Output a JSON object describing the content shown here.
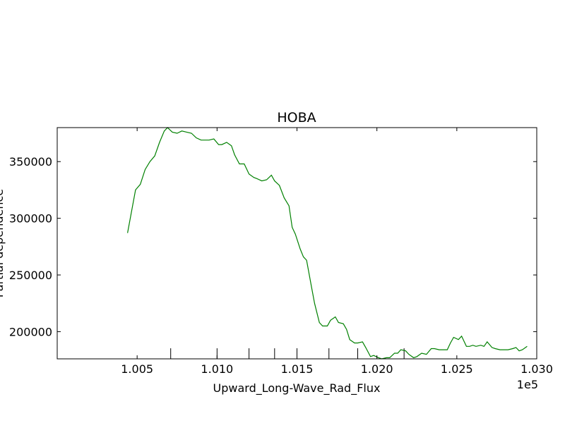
{
  "chart_data": {
    "type": "line",
    "title": "HOBA",
    "xlabel": "Upward_Long-Wave_Rad_Flux",
    "ylabel": "Partial dependence",
    "x_offset_label": "1e5",
    "xlim": [
      100000,
      103000
    ],
    "ylim": [
      176000,
      380000
    ],
    "x_tick_values": [
      100500,
      101000,
      101500,
      102000,
      102500,
      103000
    ],
    "x_tick_labels": [
      "1.005",
      "1.010",
      "1.015",
      "1.020",
      "1.025",
      "1.030"
    ],
    "y_tick_values": [
      200000,
      250000,
      300000,
      350000
    ],
    "y_tick_labels": [
      "200000",
      "250000",
      "300000",
      "350000"
    ],
    "rug_x": [
      100710,
      101000,
      101200,
      101360,
      101500,
      101700,
      101880,
      102170
    ],
    "grid": false,
    "legend": "none",
    "series": [
      {
        "color": "#008000",
        "x": [
          100440,
          100490,
          100520,
          100550,
          100580,
          100610,
          100640,
          100670,
          100690,
          100720,
          100750,
          100780,
          100810,
          100840,
          100870,
          100900,
          100920,
          100950,
          100980,
          101010,
          101030,
          101060,
          101090,
          101110,
          101140,
          101170,
          101200,
          101230,
          101250,
          101280,
          101310,
          101340,
          101360,
          101390,
          101420,
          101450,
          101470,
          101490,
          101520,
          101540,
          101560,
          101590,
          101610,
          101640,
          101660,
          101690,
          101710,
          101740,
          101760,
          101790,
          101810,
          101830,
          101860,
          101880,
          101910,
          101930,
          101960,
          101980,
          102010,
          102030,
          102060,
          102080,
          102110,
          102130,
          102150,
          102180,
          102200,
          102230,
          102250,
          102280,
          102310,
          102340,
          102360,
          102390,
          102410,
          102440,
          102460,
          102480,
          102510,
          102530,
          102560,
          102580,
          102600,
          102620,
          102650,
          102670,
          102690,
          102720,
          102740,
          102770,
          102800,
          102820,
          102850,
          102870,
          102890,
          102910,
          102940
        ],
        "y": [
          287000,
          325000,
          330000,
          343000,
          350000,
          355000,
          367000,
          377000,
          380000,
          376000,
          375000,
          377000,
          376000,
          375000,
          371000,
          369000,
          369000,
          369000,
          370000,
          365000,
          365000,
          367000,
          364000,
          356000,
          348000,
          348000,
          339000,
          336000,
          335000,
          333000,
          334000,
          338000,
          333000,
          329000,
          318000,
          311000,
          292000,
          286000,
          273000,
          266000,
          263000,
          240000,
          225000,
          208000,
          205000,
          205000,
          210000,
          213000,
          208000,
          207000,
          202000,
          193000,
          190000,
          190000,
          191000,
          186000,
          178000,
          179000,
          177000,
          176000,
          177000,
          177000,
          181000,
          181000,
          184000,
          183000,
          180000,
          177000,
          178000,
          181000,
          180000,
          185000,
          185000,
          184000,
          184000,
          184000,
          190000,
          195000,
          193000,
          196000,
          187000,
          187000,
          188000,
          187000,
          188000,
          187000,
          191000,
          186000,
          185000,
          184000,
          184000,
          184000,
          185000,
          186000,
          183000,
          184000,
          187000
        ]
      }
    ]
  }
}
